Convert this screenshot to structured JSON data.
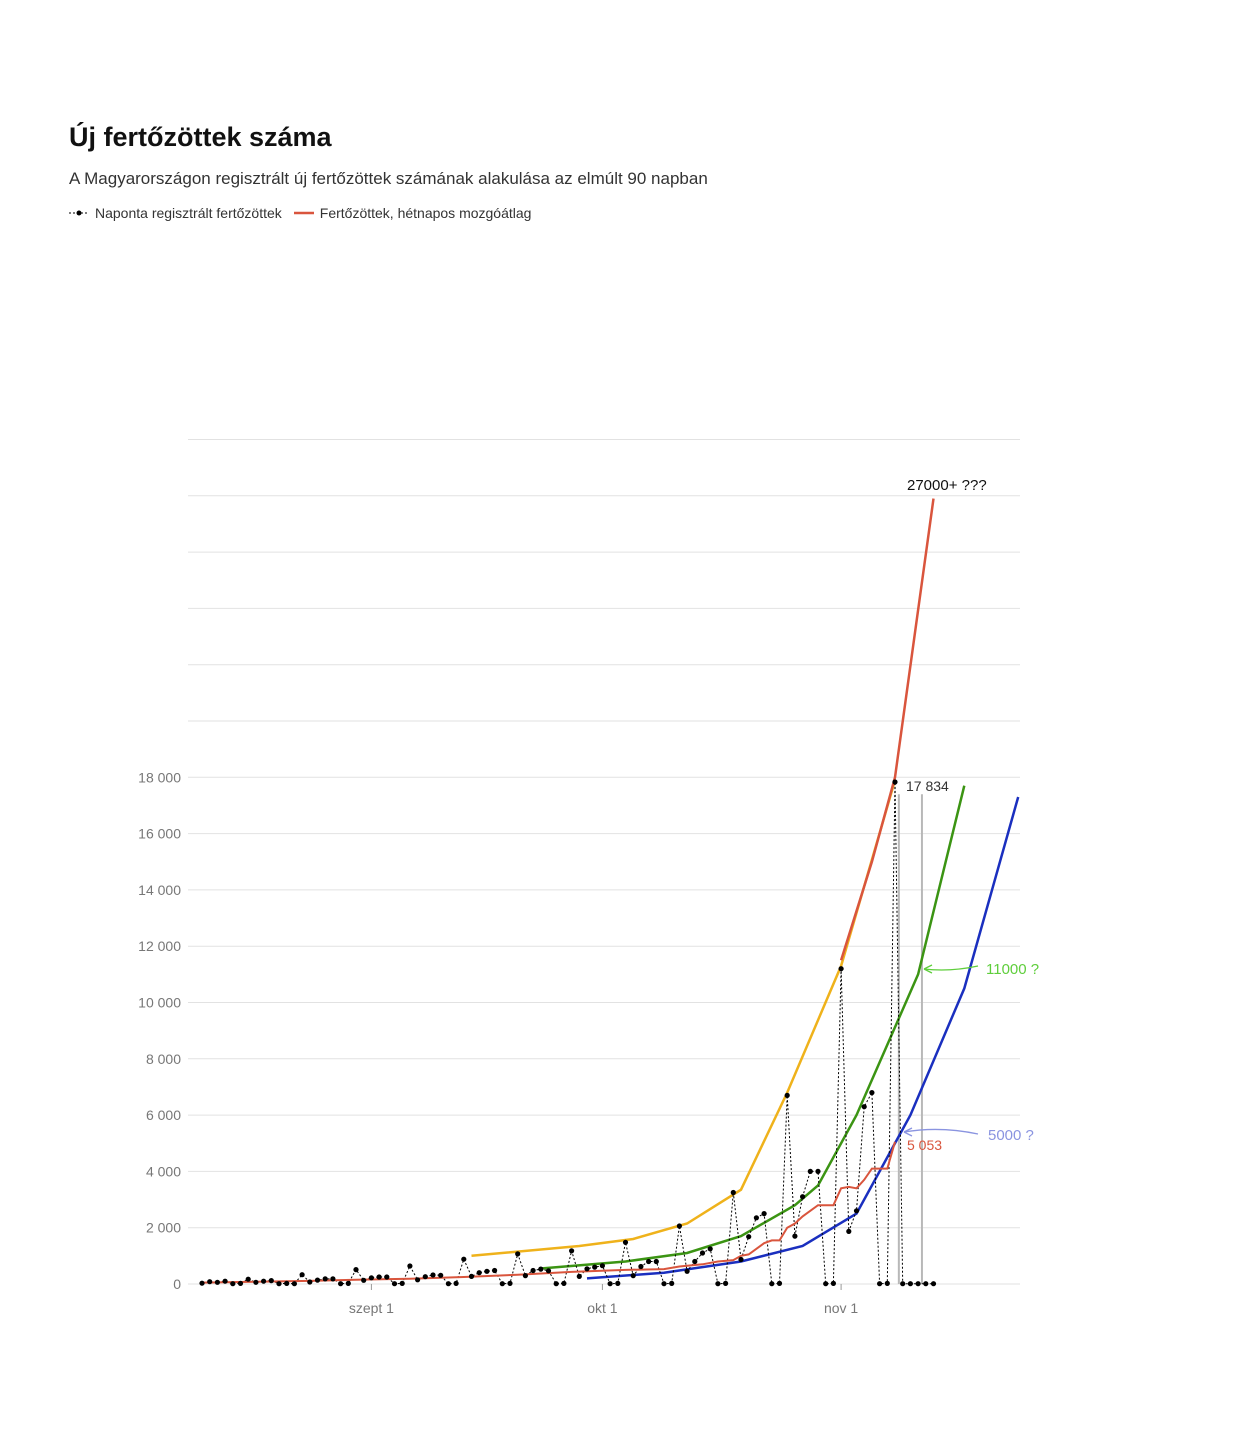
{
  "header": {
    "title": "Új fertőzöttek száma",
    "subtitle": "A Magyarországon regisztrált új fertőzöttek számának alakulása az elmúlt 90 napban"
  },
  "legend": {
    "daily_label": "Naponta regisztrált fertőzöttek",
    "avg_label": "Fertőzöttek, hétnapos mozgóátlag"
  },
  "annotations": {
    "top": "27000+ ???",
    "last_daily": "17 834",
    "last_avg": "5 053",
    "green_guess": "11000 ?",
    "blue_guess": "5000 ?"
  },
  "colors": {
    "daily": "#000000",
    "avg": "#d9553d",
    "yellow": "#efb21b",
    "green": "#3b9413",
    "blue": "#1a2fbf",
    "green_text": "#5fce3c",
    "blue_text": "#8a94e0",
    "grid": "#e2e2e2",
    "tick": "#777777"
  },
  "chart_data": {
    "type": "line",
    "ylim": [
      0,
      30000
    ],
    "y_ticks": [
      {
        "value": 0,
        "label": "0"
      },
      {
        "value": 2000,
        "label": "2 000"
      },
      {
        "value": 4000,
        "label": "4 000"
      },
      {
        "value": 6000,
        "label": "6 000"
      },
      {
        "value": 8000,
        "label": "8 000"
      },
      {
        "value": 10000,
        "label": "10 000"
      },
      {
        "value": 12000,
        "label": "12 000"
      },
      {
        "value": 14000,
        "label": "14 000"
      },
      {
        "value": 16000,
        "label": "16 000"
      },
      {
        "value": 18000,
        "label": "18 000"
      }
    ],
    "extra_gridlines": [
      20000,
      22000,
      24000,
      26000,
      28000,
      30000
    ],
    "x_range": [
      0,
      97
    ],
    "x_ticks": [
      {
        "day": 22,
        "label": "szept 1"
      },
      {
        "day": 52,
        "label": "okt 1"
      },
      {
        "day": 83,
        "label": "nov 1"
      }
    ],
    "daily": [
      {
        "day": 0,
        "value": 30
      },
      {
        "day": 1,
        "value": 80
      },
      {
        "day": 2,
        "value": 60
      },
      {
        "day": 3,
        "value": 100
      },
      {
        "day": 4,
        "value": 10
      },
      {
        "day": 5,
        "value": 20
      },
      {
        "day": 6,
        "value": 170
      },
      {
        "day": 7,
        "value": 60
      },
      {
        "day": 8,
        "value": 100
      },
      {
        "day": 9,
        "value": 120
      },
      {
        "day": 10,
        "value": 10
      },
      {
        "day": 11,
        "value": 20
      },
      {
        "day": 12,
        "value": 10
      },
      {
        "day": 13,
        "value": 330
      },
      {
        "day": 14,
        "value": 70
      },
      {
        "day": 15,
        "value": 140
      },
      {
        "day": 16,
        "value": 180
      },
      {
        "day": 17,
        "value": 180
      },
      {
        "day": 18,
        "value": 10
      },
      {
        "day": 19,
        "value": 20
      },
      {
        "day": 20,
        "value": 510
      },
      {
        "day": 21,
        "value": 130
      },
      {
        "day": 22,
        "value": 220
      },
      {
        "day": 23,
        "value": 250
      },
      {
        "day": 24,
        "value": 250
      },
      {
        "day": 25,
        "value": 10
      },
      {
        "day": 26,
        "value": 20
      },
      {
        "day": 27,
        "value": 640
      },
      {
        "day": 28,
        "value": 150
      },
      {
        "day": 29,
        "value": 260
      },
      {
        "day": 30,
        "value": 320
      },
      {
        "day": 31,
        "value": 310
      },
      {
        "day": 32,
        "value": 10
      },
      {
        "day": 33,
        "value": 20
      },
      {
        "day": 34,
        "value": 880
      },
      {
        "day": 35,
        "value": 270
      },
      {
        "day": 36,
        "value": 400
      },
      {
        "day": 37,
        "value": 450
      },
      {
        "day": 38,
        "value": 480
      },
      {
        "day": 39,
        "value": 10
      },
      {
        "day": 40,
        "value": 20
      },
      {
        "day": 41,
        "value": 1070
      },
      {
        "day": 42,
        "value": 300
      },
      {
        "day": 43,
        "value": 480
      },
      {
        "day": 44,
        "value": 530
      },
      {
        "day": 45,
        "value": 470
      },
      {
        "day": 46,
        "value": 10
      },
      {
        "day": 47,
        "value": 20
      },
      {
        "day": 48,
        "value": 1180
      },
      {
        "day": 49,
        "value": 270
      },
      {
        "day": 50,
        "value": 540
      },
      {
        "day": 51,
        "value": 600
      },
      {
        "day": 52,
        "value": 650
      },
      {
        "day": 53,
        "value": 10
      },
      {
        "day": 54,
        "value": 20
      },
      {
        "day": 55,
        "value": 1480
      },
      {
        "day": 56,
        "value": 300
      },
      {
        "day": 57,
        "value": 620
      },
      {
        "day": 58,
        "value": 800
      },
      {
        "day": 59,
        "value": 800
      },
      {
        "day": 60,
        "value": 10
      },
      {
        "day": 61,
        "value": 20
      },
      {
        "day": 62,
        "value": 2060
      },
      {
        "day": 63,
        "value": 450
      },
      {
        "day": 64,
        "value": 800
      },
      {
        "day": 65,
        "value": 1100
      },
      {
        "day": 66,
        "value": 1250
      },
      {
        "day": 67,
        "value": 10
      },
      {
        "day": 68,
        "value": 20
      },
      {
        "day": 69,
        "value": 3250
      },
      {
        "day": 70,
        "value": 870
      },
      {
        "day": 71,
        "value": 1680
      },
      {
        "day": 72,
        "value": 2350
      },
      {
        "day": 73,
        "value": 2500
      },
      {
        "day": 74,
        "value": 10
      },
      {
        "day": 75,
        "value": 20
      },
      {
        "day": 76,
        "value": 6700
      },
      {
        "day": 77,
        "value": 1700
      },
      {
        "day": 78,
        "value": 3100
      },
      {
        "day": 79,
        "value": 4000
      },
      {
        "day": 80,
        "value": 4000
      },
      {
        "day": 81,
        "value": 10
      },
      {
        "day": 82,
        "value": 20
      },
      {
        "day": 83,
        "value": 11200
      },
      {
        "day": 84,
        "value": 1870
      },
      {
        "day": 85,
        "value": 2600
      },
      {
        "day": 86,
        "value": 6300
      },
      {
        "day": 87,
        "value": 6800
      },
      {
        "day": 88,
        "value": 10
      },
      {
        "day": 89,
        "value": 20
      },
      {
        "day": 90,
        "value": 17834
      },
      {
        "day": 91,
        "value": 10
      },
      {
        "day": 92,
        "value": 10
      },
      {
        "day": 93,
        "value": 10
      },
      {
        "day": 94,
        "value": 10
      },
      {
        "day": 95,
        "value": 10
      }
    ],
    "moving_average": [
      {
        "day": 0,
        "value": 50
      },
      {
        "day": 7,
        "value": 80
      },
      {
        "day": 14,
        "value": 110
      },
      {
        "day": 20,
        "value": 150
      },
      {
        "day": 27,
        "value": 190
      },
      {
        "day": 34,
        "value": 250
      },
      {
        "day": 41,
        "value": 330
      },
      {
        "day": 48,
        "value": 430
      },
      {
        "day": 55,
        "value": 500
      },
      {
        "day": 60,
        "value": 530
      },
      {
        "day": 62,
        "value": 620
      },
      {
        "day": 65,
        "value": 700
      },
      {
        "day": 67,
        "value": 800
      },
      {
        "day": 69,
        "value": 850
      },
      {
        "day": 70,
        "value": 1000
      },
      {
        "day": 71,
        "value": 1050
      },
      {
        "day": 73,
        "value": 1450
      },
      {
        "day": 74,
        "value": 1550
      },
      {
        "day": 75,
        "value": 1550
      },
      {
        "day": 76,
        "value": 2000
      },
      {
        "day": 77,
        "value": 2150
      },
      {
        "day": 78,
        "value": 2400
      },
      {
        "day": 79,
        "value": 2600
      },
      {
        "day": 80,
        "value": 2800
      },
      {
        "day": 81,
        "value": 2800
      },
      {
        "day": 82,
        "value": 2800
      },
      {
        "day": 83,
        "value": 3400
      },
      {
        "day": 84,
        "value": 3450
      },
      {
        "day": 85,
        "value": 3400
      },
      {
        "day": 86,
        "value": 3700
      },
      {
        "day": 87,
        "value": 4100
      },
      {
        "day": 88,
        "value": 4100
      },
      {
        "day": 89,
        "value": 4100
      },
      {
        "day": 90,
        "value": 5053
      }
    ],
    "projection_red": [
      {
        "day": 83,
        "value": 11500
      },
      {
        "day": 87,
        "value": 15000
      },
      {
        "day": 90,
        "value": 18000
      },
      {
        "day": 95,
        "value": 27900
      }
    ],
    "projection_yellow": [
      {
        "day": 35,
        "value": 1000
      },
      {
        "day": 49,
        "value": 1350
      },
      {
        "day": 56,
        "value": 1600
      },
      {
        "day": 63,
        "value": 2150
      },
      {
        "day": 70,
        "value": 3350
      },
      {
        "day": 76,
        "value": 6800
      },
      {
        "day": 83,
        "value": 11300
      },
      {
        "day": 90,
        "value": 17900
      }
    ],
    "projection_green": [
      {
        "day": 44,
        "value": 550
      },
      {
        "day": 55,
        "value": 800
      },
      {
        "day": 63,
        "value": 1100
      },
      {
        "day": 70,
        "value": 1700
      },
      {
        "day": 77,
        "value": 2800
      },
      {
        "day": 80,
        "value": 3500
      },
      {
        "day": 85,
        "value": 6000
      },
      {
        "day": 93,
        "value": 11000
      },
      {
        "day": 99,
        "value": 17700
      }
    ],
    "projection_blue": [
      {
        "day": 50,
        "value": 200
      },
      {
        "day": 60,
        "value": 400
      },
      {
        "day": 70,
        "value": 800
      },
      {
        "day": 78,
        "value": 1350
      },
      {
        "day": 85,
        "value": 2500
      },
      {
        "day": 92,
        "value": 6000
      },
      {
        "day": 99,
        "value": 10500
      },
      {
        "day": 106,
        "value": 17300
      }
    ],
    "markers": [
      {
        "day": 90.5,
        "from": 0,
        "to": 17400
      },
      {
        "day": 93.5,
        "from": 0,
        "to": 17400
      }
    ]
  }
}
